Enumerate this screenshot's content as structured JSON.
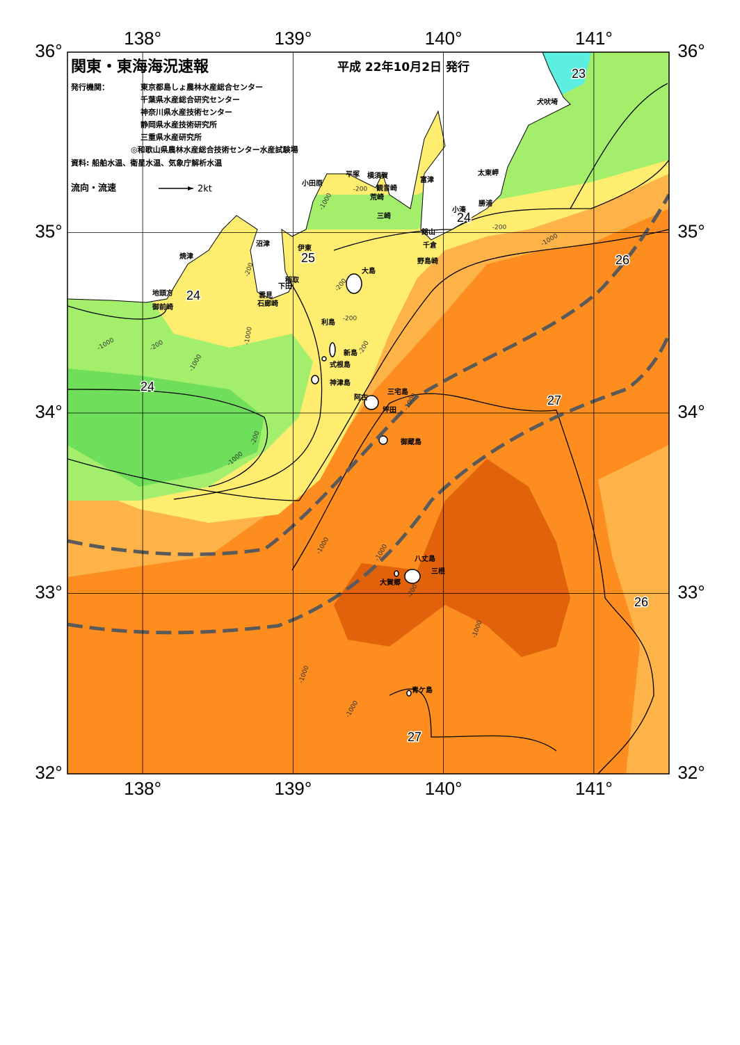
{
  "header": {
    "title": "関東・東海海況速報",
    "date": "平成 22年10月2日 発行"
  },
  "issuers": {
    "label": "発行機関：",
    "list": [
      "東京都島しょ農林水産総合センター",
      "千葉県水産総合研究センター",
      "神奈川県水産技術センター",
      "静岡県水産技術研究所",
      "三重県水産研究所",
      "◎和歌山県農林水産総合技術センター水産試験場"
    ]
  },
  "source": "資料: 船舶水温、衛星水温、気象庁解析水温",
  "legend": {
    "label": "流向・流速",
    "scale": "2kt"
  },
  "axes": {
    "lon_ticks": [
      {
        "value": 138,
        "label": "138°"
      },
      {
        "value": 139,
        "label": "139°"
      },
      {
        "value": 140,
        "label": "140°"
      },
      {
        "value": 141,
        "label": "141°"
      }
    ],
    "lat_ticks": [
      {
        "value": 36,
        "label": "36°"
      },
      {
        "value": 35,
        "label": "35°"
      },
      {
        "value": 34,
        "label": "34°"
      },
      {
        "value": 33,
        "label": "33°"
      },
      {
        "value": 32,
        "label": "32°"
      }
    ]
  },
  "place_names": [
    "犬吠埼",
    "太東岬",
    "勝浦",
    "小湊",
    "館山",
    "千倉",
    "野島崎",
    "富津",
    "横須賀",
    "観音崎",
    "平塚",
    "小田原",
    "荒崎",
    "三崎",
    "伊東",
    "沼津",
    "焼津",
    "稲取",
    "下田",
    "雲見",
    "石廊崎",
    "地頭方",
    "御前崎",
    "大島",
    "利島",
    "新島",
    "式根島",
    "神津島",
    "三宅島",
    "阿古",
    "坪田",
    "御蔵島",
    "八丈島",
    "三根",
    "大賀郷",
    "青ケ島"
  ],
  "temperature_labels": [
    23,
    24,
    25,
    24,
    24,
    26,
    27,
    26,
    27
  ],
  "depth_labels": [
    "-1000",
    "-200",
    "-200",
    "-1000",
    "-200",
    "-1000",
    "-200",
    "-1000",
    "-1000",
    "-200",
    "-1000",
    "-200",
    "-200",
    "-200",
    "-1000",
    "-1000",
    "-1000",
    "-200",
    "-1000",
    "-1000",
    "-1000"
  ]
}
